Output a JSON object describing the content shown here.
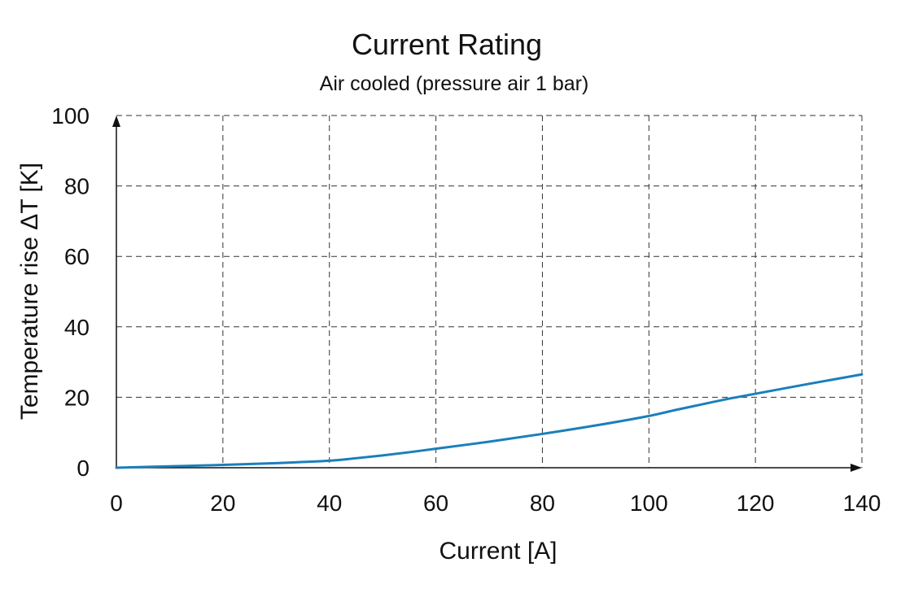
{
  "chart_data": {
    "type": "line",
    "title": "Current Rating",
    "subtitle": "Air cooled (pressure air 1 bar)",
    "xlabel": "Current [A]",
    "ylabel": "Temperature rise ΔT [K]",
    "xlim": [
      0,
      140
    ],
    "ylim": [
      0,
      100
    ],
    "xticks": [
      0,
      20,
      40,
      60,
      80,
      100,
      120,
      140
    ],
    "yticks": [
      0,
      20,
      40,
      60,
      80,
      100
    ],
    "grid": true,
    "series": [
      {
        "color": "#1a7fbb",
        "x": [
          0,
          10,
          20,
          30,
          40,
          45,
          50,
          55,
          60,
          70,
          80,
          90,
          100,
          105,
          110,
          115,
          120,
          130,
          140
        ],
        "y": [
          0,
          0.4,
          0.8,
          1.3,
          2.0,
          2.7,
          3.5,
          4.4,
          5.4,
          7.4,
          9.6,
          12.0,
          14.7,
          16.4,
          18.0,
          19.6,
          21.0,
          23.8,
          26.5
        ]
      }
    ]
  }
}
